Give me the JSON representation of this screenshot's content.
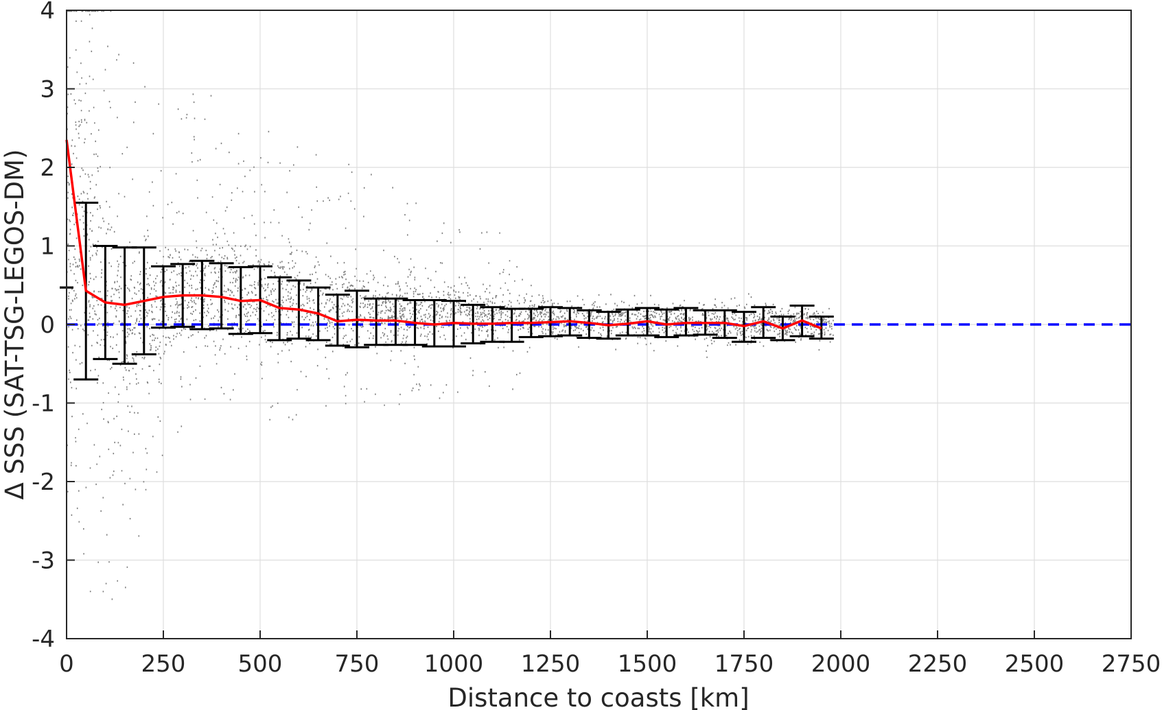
{
  "chart_data": {
    "type": "scatter",
    "xlabel": "Distance to coasts [km]",
    "ylabel": "Δ SSS (SAT-TSG-LEGOS-DM)",
    "xlim": [
      0,
      2750
    ],
    "ylim": [
      -4,
      4
    ],
    "xticks": [
      "0",
      "250",
      "500",
      "750",
      "1000",
      "1250",
      "1500",
      "1750",
      "2000",
      "2250",
      "2500",
      "2750"
    ],
    "yticks": [
      "-4",
      "-3",
      "-2",
      "-1",
      "0",
      "1",
      "2",
      "3",
      "4"
    ],
    "grid": true,
    "colors": {
      "scatter": "#808080",
      "mean": "#ff0000",
      "errorbar": "#000000",
      "zero_line": "#0000ff"
    },
    "zero_line": {
      "y": 0,
      "style": "dashed"
    },
    "scatter_envelope": {
      "x": [
        0,
        50,
        100,
        150,
        200,
        250,
        300,
        350,
        400,
        450,
        500,
        550,
        600,
        650,
        700,
        750,
        800,
        850,
        900,
        950,
        1000,
        1050,
        1100,
        1150,
        1200,
        1250,
        1300,
        1350,
        1400,
        1450,
        1500,
        1550,
        1600,
        1650,
        1700,
        1750,
        1800,
        1850,
        1900,
        1950
      ],
      "upper": [
        4.0,
        4.0,
        2.2,
        1.7,
        1.5,
        1.4,
        1.4,
        1.35,
        1.3,
        1.25,
        1.2,
        1.1,
        1.0,
        0.95,
        0.9,
        0.85,
        0.8,
        0.75,
        0.7,
        0.65,
        0.6,
        0.55,
        0.5,
        0.45,
        0.4,
        0.38,
        0.36,
        0.34,
        0.32,
        0.32,
        0.34,
        0.33,
        0.32,
        0.33,
        0.34,
        0.32,
        0.3,
        0.28,
        0.26,
        0.22
      ],
      "lower": [
        -1.5,
        -1.8,
        -1.9,
        -1.8,
        -1.3,
        -0.9,
        -0.7,
        -0.6,
        -0.55,
        -0.55,
        -0.55,
        -0.5,
        -0.55,
        -0.5,
        -0.45,
        -0.45,
        -0.45,
        -0.45,
        -0.45,
        -0.4,
        -0.35,
        -0.3,
        -0.3,
        -0.3,
        -0.25,
        -0.3,
        -0.3,
        -0.32,
        -0.32,
        -0.32,
        -0.33,
        -0.32,
        -0.3,
        -0.35,
        -0.4,
        -0.38,
        -0.35,
        -0.32,
        -0.3,
        -0.3
      ]
    },
    "bin_stats": {
      "x": [
        0,
        50,
        100,
        150,
        200,
        250,
        300,
        350,
        400,
        450,
        500,
        550,
        600,
        650,
        700,
        750,
        800,
        850,
        900,
        950,
        1000,
        1050,
        1100,
        1150,
        1200,
        1250,
        1300,
        1350,
        1400,
        1450,
        1500,
        1550,
        1600,
        1650,
        1700,
        1750,
        1800,
        1850,
        1900,
        1950
      ],
      "mean": [
        2.35,
        0.43,
        0.28,
        0.25,
        0.3,
        0.35,
        0.37,
        0.37,
        0.35,
        0.3,
        0.31,
        0.21,
        0.19,
        0.14,
        0.04,
        0.06,
        0.05,
        0.05,
        0.02,
        0.0,
        0.02,
        0.01,
        0.01,
        0.02,
        0.02,
        0.03,
        0.04,
        0.02,
        -0.01,
        0.01,
        0.04,
        0.0,
        0.02,
        0.02,
        0.02,
        -0.02,
        0.04,
        -0.05,
        0.05,
        -0.05
      ],
      "upper": [
        0.47,
        1.55,
        1.0,
        0.98,
        0.98,
        0.74,
        0.77,
        0.81,
        0.78,
        0.73,
        0.74,
        0.6,
        0.56,
        0.47,
        0.38,
        0.43,
        0.33,
        0.33,
        0.31,
        0.31,
        0.3,
        0.25,
        0.22,
        0.2,
        0.2,
        0.22,
        0.21,
        0.18,
        0.16,
        0.19,
        0.21,
        0.19,
        0.21,
        0.18,
        0.18,
        0.16,
        0.22,
        0.1,
        0.24,
        0.1
      ],
      "lower": [
        0.47,
        -0.7,
        -0.44,
        -0.5,
        -0.38,
        -0.04,
        -0.03,
        -0.06,
        -0.05,
        -0.12,
        -0.11,
        -0.2,
        -0.18,
        -0.2,
        -0.27,
        -0.29,
        -0.26,
        -0.26,
        -0.26,
        -0.28,
        -0.28,
        -0.24,
        -0.22,
        -0.22,
        -0.16,
        -0.15,
        -0.14,
        -0.17,
        -0.18,
        -0.14,
        -0.14,
        -0.16,
        -0.14,
        -0.13,
        -0.17,
        -0.22,
        -0.17,
        -0.2,
        -0.15,
        -0.18
      ]
    }
  }
}
